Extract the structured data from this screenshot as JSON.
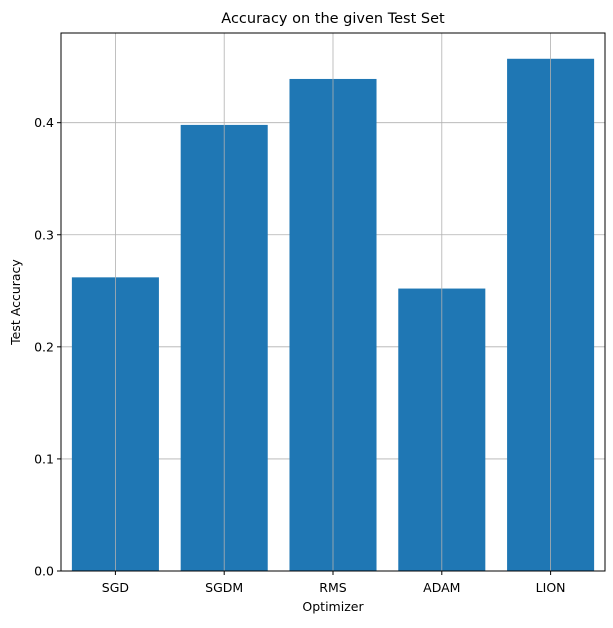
{
  "chart_data": {
    "type": "bar",
    "title": "Accuracy on the given Test Set",
    "xlabel": "Optimizer",
    "ylabel": "Test Accuracy",
    "categories": [
      "SGD",
      "SGDM",
      "RMS",
      "ADAM",
      "LION"
    ],
    "values": [
      0.262,
      0.398,
      0.439,
      0.252,
      0.457
    ],
    "ylim": [
      0,
      0.48
    ],
    "yticks": [
      0.0,
      0.1,
      0.2,
      0.3,
      0.4
    ],
    "ytick_labels": [
      "0.0",
      "0.1",
      "0.2",
      "0.3",
      "0.4"
    ],
    "grid": true,
    "bar_color": "#1f77b4",
    "grid_color": "#b0b0b0"
  }
}
